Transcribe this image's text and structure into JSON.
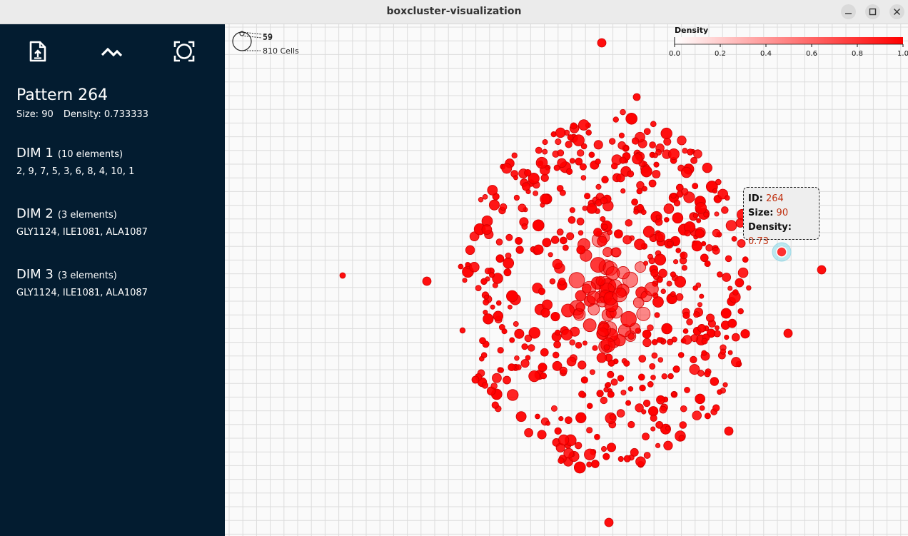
{
  "window": {
    "title": "boxcluster-visualization"
  },
  "toolbar": {
    "upload_icon": "file-upload-icon",
    "chart_icon": "line-chart-icon",
    "reset_icon": "reset-zoom-icon"
  },
  "pattern": {
    "title": "Pattern 264",
    "size_label": "Size:",
    "size_value": "90",
    "density_label": "Density:",
    "density_value": "0.733333"
  },
  "dims": [
    {
      "title": "DIM 1",
      "count": "(10 elements)",
      "values": "2, 9, 7, 5, 3, 6, 8, 4, 10, 1"
    },
    {
      "title": "DIM 2",
      "count": "(3 elements)",
      "values": "GLY1124, ILE1081, ALA1087"
    },
    {
      "title": "DIM 3",
      "count": "(3 elements)",
      "values": "GLY1124, ILE1081, ALA1087"
    }
  ],
  "size_legend": {
    "top": "59",
    "mid": "59",
    "bottom": "810 Cells"
  },
  "density_legend": {
    "title": "Density",
    "ticks": [
      "0.0",
      "0.2",
      "0.4",
      "0.6",
      "0.8",
      "1.0"
    ],
    "color_low": "#ffffff",
    "color_high": "#ff0000"
  },
  "tooltip": {
    "id_label": "ID:",
    "id_value": "264",
    "size_label": "Size:",
    "size_value": "90",
    "density_label": "Density:",
    "density_value": "0.73"
  },
  "colors": {
    "sidebar": "#031c30",
    "point": "#ff0000",
    "point_stroke": "#cc0000",
    "highlight": "#88d8e8"
  }
}
